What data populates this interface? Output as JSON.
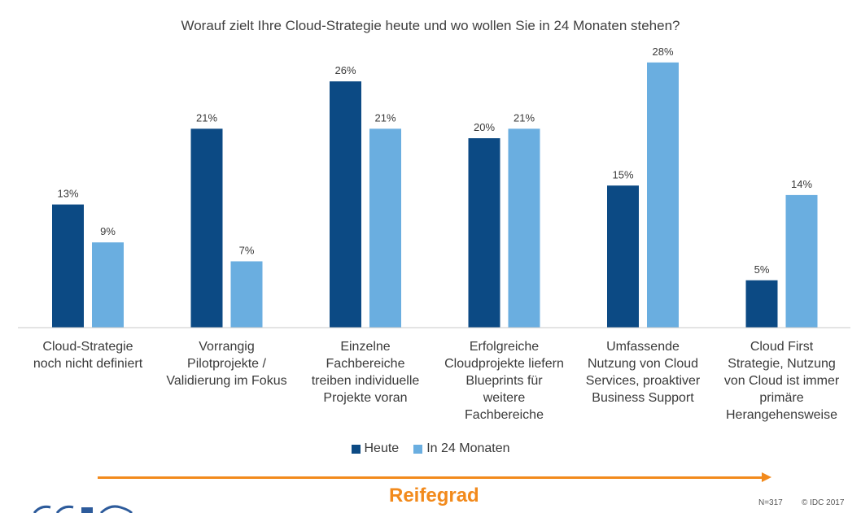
{
  "chart_data": {
    "type": "bar",
    "title": "Worauf zielt Ihre Cloud-Strategie heute und wo wollen Sie in 24 Monaten stehen?",
    "categories": [
      "Cloud-Strategie\nnoch nicht definiert",
      "Vorrangig\nPilotprojekte /\nValidierung im Fokus",
      "Einzelne\nFachbereiche\ntreiben individuelle\nProjekte voran",
      "Erfolgreiche\nCloudprojekte liefern\nBlueprints für\nweitere\nFachbereiche",
      "Umfassende\nNutzung von Cloud\nServices, proaktiver\nBusiness Support",
      "Cloud First\nStrategie, Nutzung\nvon Cloud ist immer\nprimäre\nHerangehensweise"
    ],
    "series": [
      {
        "name": "Heute",
        "color": "#0c4a84",
        "values": [
          13,
          21,
          26,
          20,
          15,
          5
        ],
        "labels": [
          "13%",
          "21%",
          "26%",
          "20%",
          "15%",
          "5%"
        ]
      },
      {
        "name": "In 24 Monaten",
        "color": "#6aaee0",
        "values": [
          9,
          7,
          21,
          21,
          28,
          14
        ],
        "labels": [
          "9%",
          "7%",
          "21%",
          "21%",
          "28%",
          "14%"
        ]
      }
    ],
    "ylim": [
      0,
      30
    ],
    "grid": false,
    "legend": "bottom-center",
    "unit": "%"
  },
  "footer": {
    "maturity_label": "Reifegrad",
    "sample_size": "N=317",
    "copyright": "© IDC 2017"
  },
  "colors": {
    "accent": "#f28a1c",
    "axis": "#c8c8c8"
  }
}
